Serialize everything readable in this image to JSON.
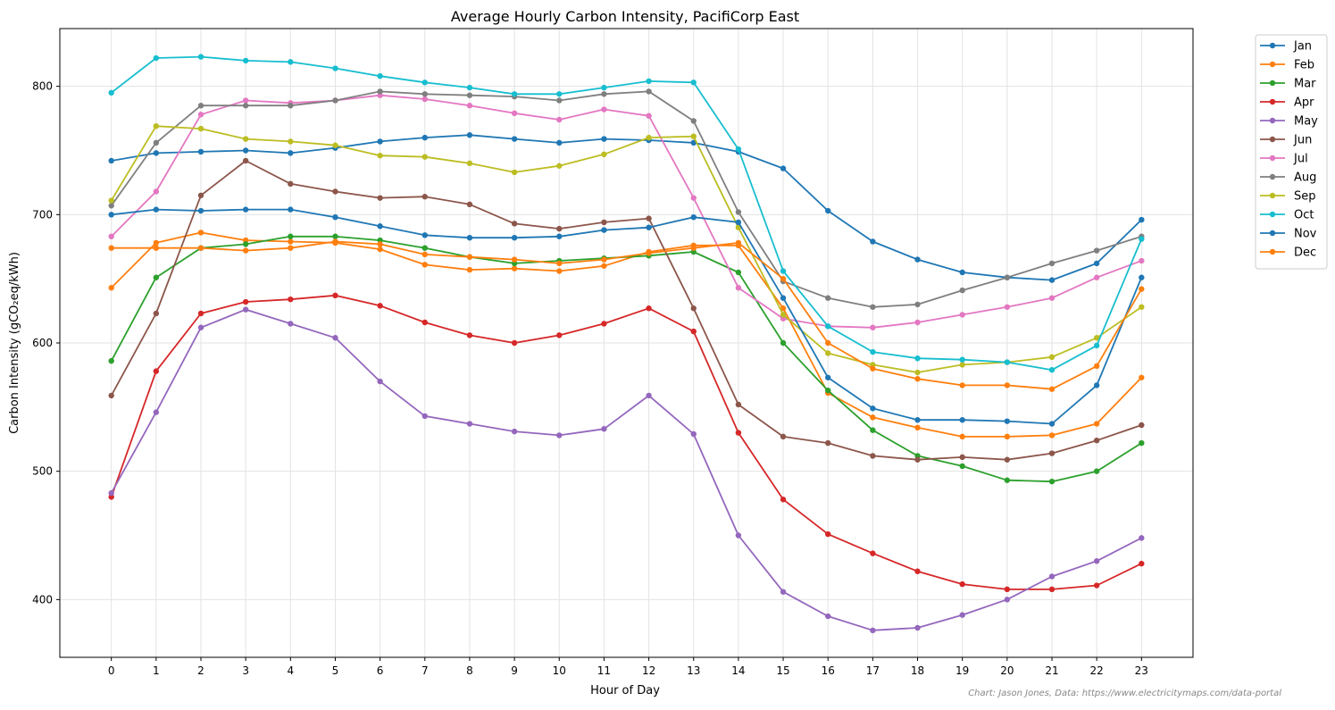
{
  "chart_data": {
    "type": "line",
    "title": "Average Hourly Carbon Intensity, PacifiCorp East",
    "xlabel": "Hour of Day",
    "ylabel": "Carbon Intensity (gCO₂eq/kWh)",
    "x": [
      0,
      1,
      2,
      3,
      4,
      5,
      6,
      7,
      8,
      9,
      10,
      11,
      12,
      13,
      14,
      15,
      16,
      17,
      18,
      19,
      20,
      21,
      22,
      23
    ],
    "xlim": [
      -1.15,
      24.15
    ],
    "ylim": [
      355,
      845
    ],
    "yticks": [
      400,
      500,
      600,
      700,
      800
    ],
    "grid": true,
    "legend_position": "outside-top-right",
    "credit": "Chart: Jason Jones, Data: https://www.electricitymaps.com/data-portal",
    "series": [
      {
        "name": "Jan",
        "color": "#1f77b4",
        "values": [
          742,
          748,
          749,
          750,
          748,
          752,
          757,
          760,
          762,
          759,
          756,
          759,
          758,
          756,
          749,
          736,
          703,
          679,
          665,
          655,
          651,
          649,
          662,
          696
        ]
      },
      {
        "name": "Feb",
        "color": "#ff7f0e",
        "values": [
          643,
          678,
          686,
          680,
          679,
          678,
          673,
          661,
          657,
          658,
          656,
          660,
          671,
          676,
          676,
          627,
          561,
          542,
          534,
          527,
          527,
          528,
          537,
          573
        ]
      },
      {
        "name": "Mar",
        "color": "#2ca02c",
        "values": [
          586,
          651,
          674,
          677,
          683,
          683,
          680,
          674,
          667,
          662,
          664,
          666,
          668,
          671,
          655,
          600,
          563,
          532,
          512,
          504,
          493,
          492,
          500,
          522
        ]
      },
      {
        "name": "Apr",
        "color": "#d62728",
        "values": [
          480,
          578,
          623,
          632,
          634,
          637,
          629,
          616,
          606,
          600,
          606,
          615,
          627,
          609,
          530,
          478,
          451,
          436,
          422,
          412,
          408,
          408,
          411,
          428
        ]
      },
      {
        "name": "May",
        "color": "#9467bd",
        "values": [
          483,
          546,
          612,
          626,
          615,
          604,
          570,
          543,
          537,
          531,
          528,
          533,
          559,
          529,
          450,
          406,
          387,
          376,
          378,
          388,
          400,
          418,
          430,
          448
        ]
      },
      {
        "name": "Jun",
        "color": "#8c564b",
        "values": [
          559,
          623,
          715,
          742,
          724,
          718,
          713,
          714,
          708,
          693,
          689,
          694,
          697,
          627,
          552,
          527,
          522,
          512,
          509,
          511,
          509,
          514,
          524,
          536
        ]
      },
      {
        "name": "Jul",
        "color": "#e377c2",
        "values": [
          683,
          718,
          778,
          789,
          787,
          789,
          793,
          790,
          785,
          779,
          774,
          782,
          777,
          713,
          643,
          619,
          613,
          612,
          616,
          622,
          628,
          635,
          651,
          664
        ]
      },
      {
        "name": "Aug",
        "color": "#7f7f7f",
        "values": [
          707,
          756,
          785,
          785,
          785,
          789,
          796,
          794,
          793,
          792,
          789,
          794,
          796,
          773,
          702,
          648,
          635,
          628,
          630,
          641,
          651,
          662,
          672,
          683
        ]
      },
      {
        "name": "Sep",
        "color": "#bcbd22",
        "values": [
          711,
          769,
          767,
          759,
          757,
          754,
          746,
          745,
          740,
          733,
          738,
          747,
          760,
          761,
          690,
          622,
          592,
          583,
          577,
          583,
          585,
          589,
          604,
          628
        ]
      },
      {
        "name": "Oct",
        "color": "#17becf",
        "values": [
          795,
          822,
          823,
          820,
          819,
          814,
          808,
          803,
          799,
          794,
          794,
          799,
          804,
          803,
          751,
          656,
          613,
          593,
          588,
          587,
          585,
          579,
          598,
          681
        ]
      },
      {
        "name": "Nov",
        "color": "#1f77b4",
        "values": [
          700,
          704,
          703,
          704,
          704,
          698,
          691,
          684,
          682,
          682,
          683,
          688,
          690,
          698,
          694,
          635,
          573,
          549,
          540,
          540,
          539,
          537,
          567,
          651
        ]
      },
      {
        "name": "Dec",
        "color": "#ff7f0e",
        "values": [
          674,
          674,
          674,
          672,
          674,
          679,
          677,
          669,
          667,
          665,
          662,
          665,
          670,
          674,
          678,
          650,
          600,
          580,
          572,
          567,
          567,
          564,
          582,
          642
        ]
      }
    ]
  }
}
